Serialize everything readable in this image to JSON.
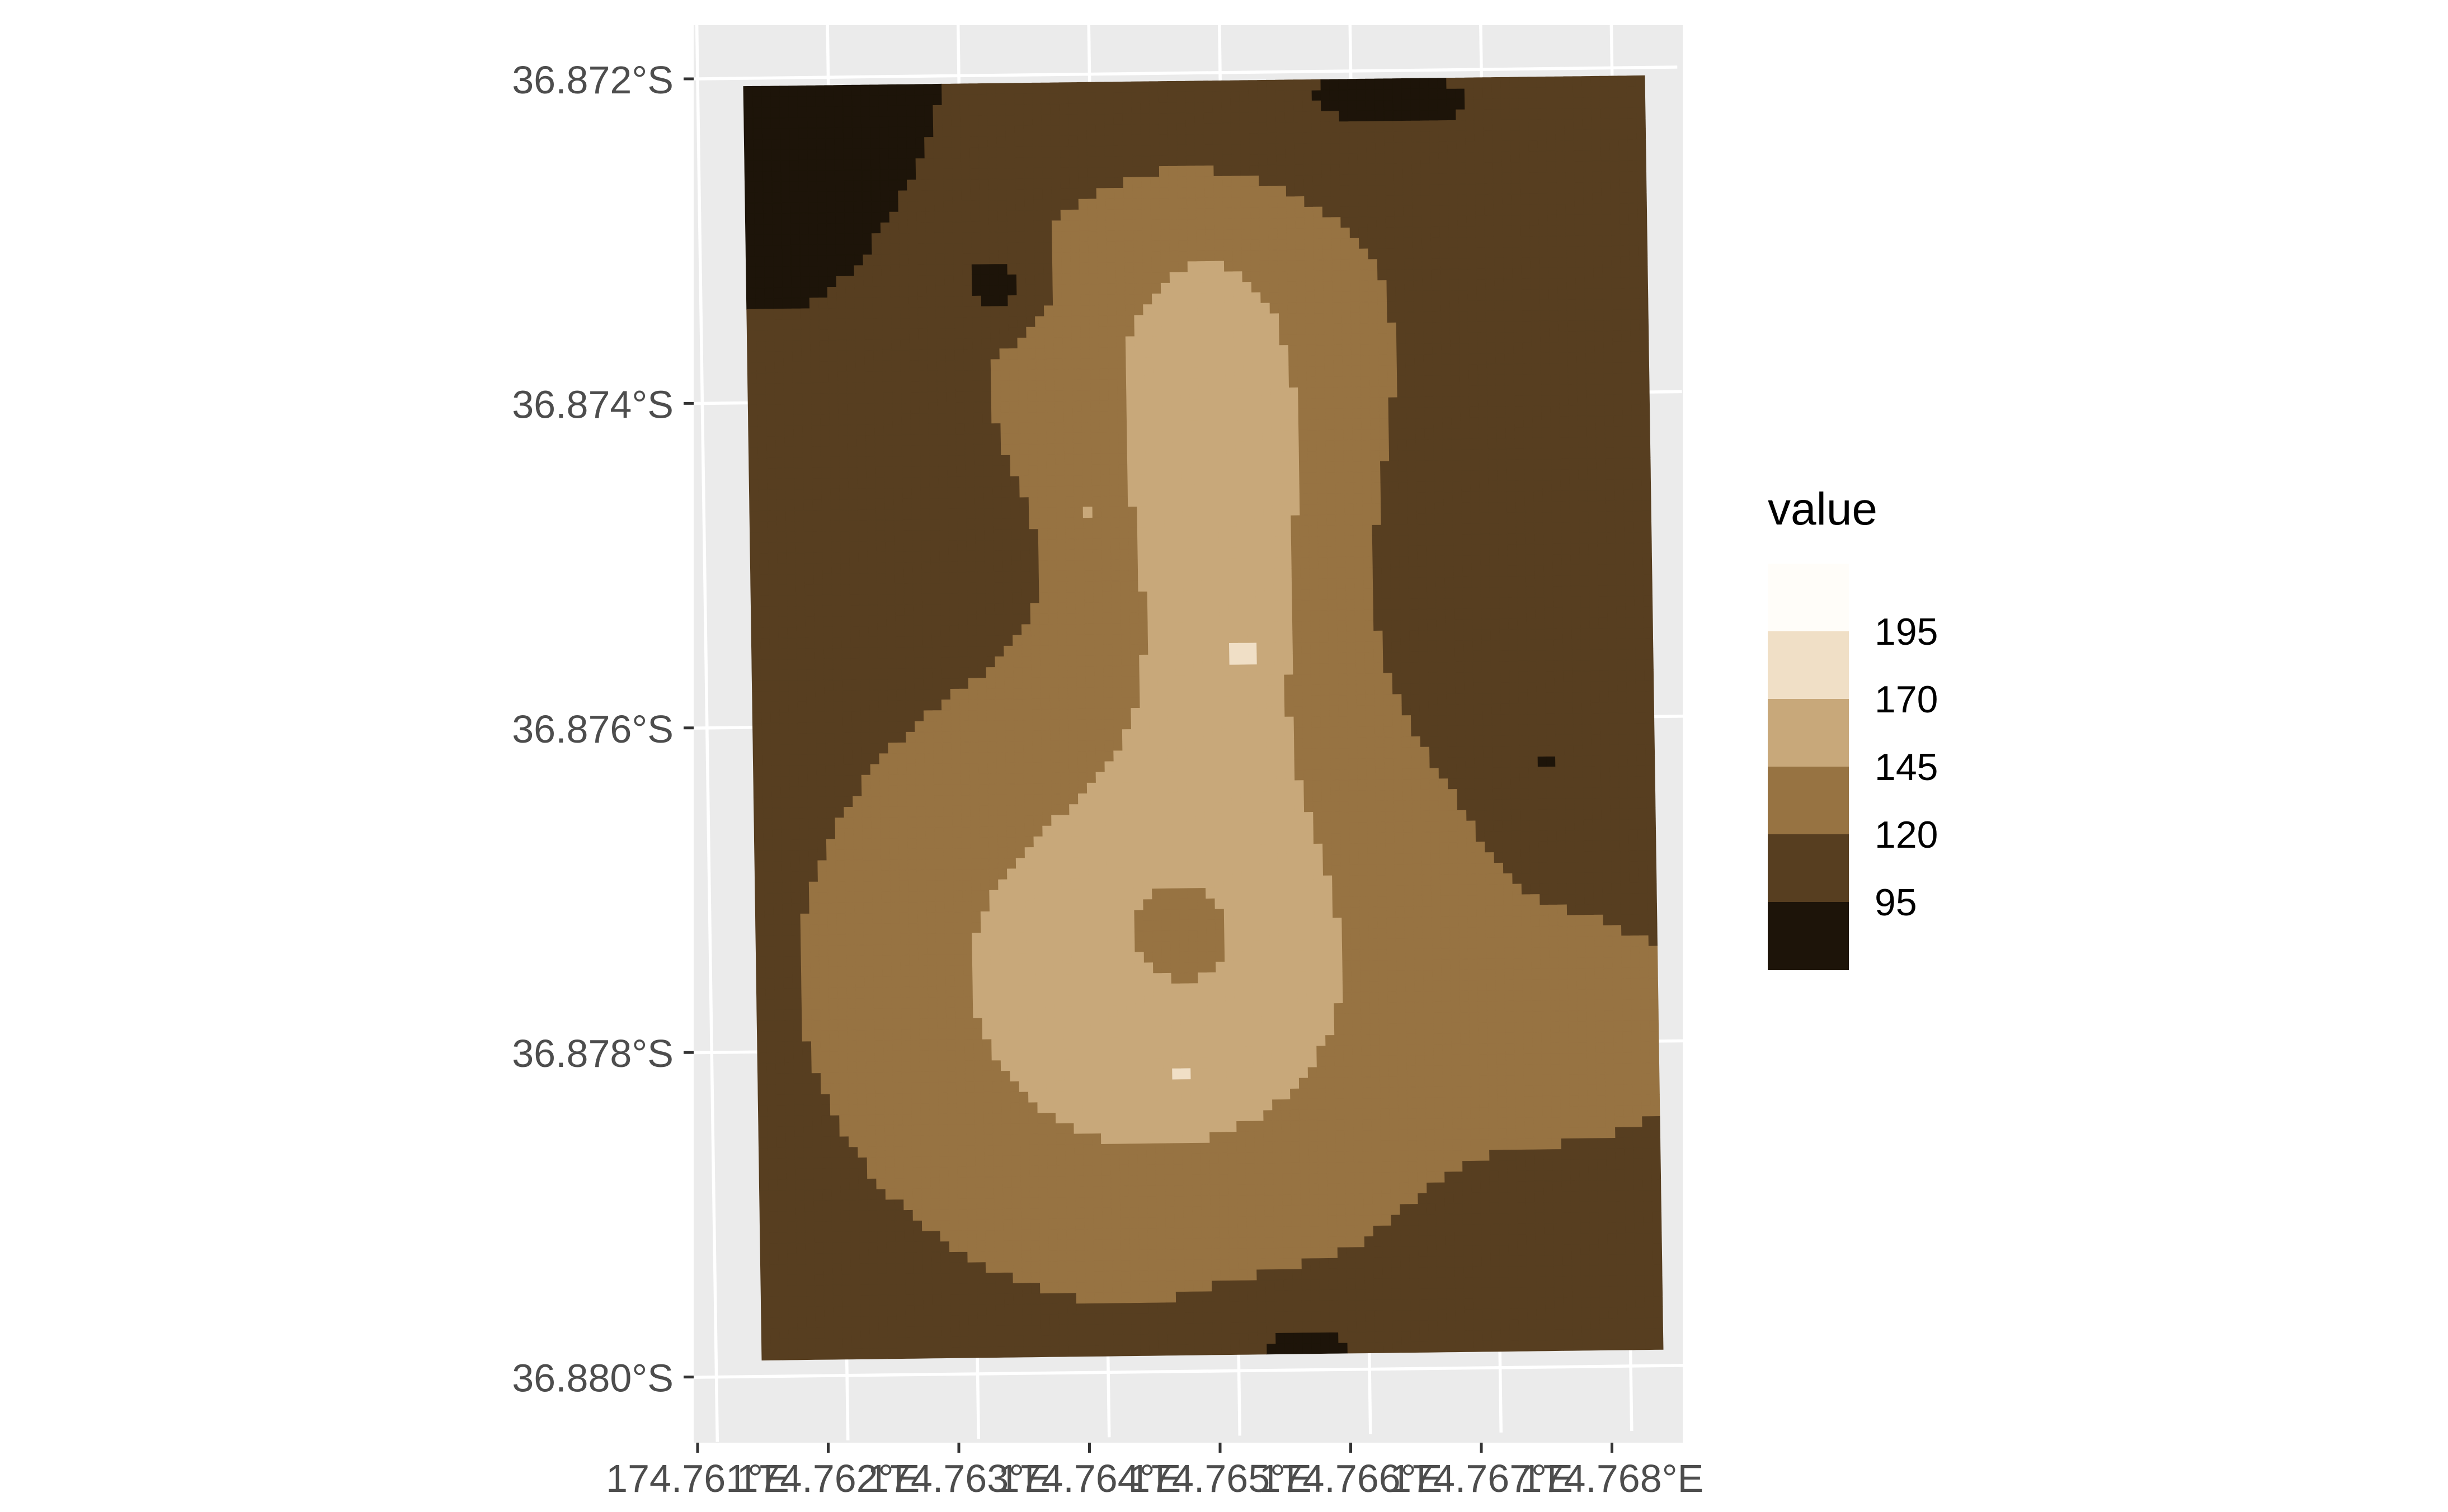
{
  "chart_data": {
    "type": "heatmap",
    "title": "",
    "xlabel": "",
    "ylabel": "",
    "grid": true,
    "legend_position": "right",
    "legend": {
      "title": "value",
      "breaks": [
        "195",
        "170",
        "145",
        "120",
        "95"
      ],
      "colors": [
        "#fffdf9",
        "#f0dfc6",
        "#c8a87a",
        "#977342",
        "#573e20",
        "#1d1409"
      ]
    },
    "x_axis": {
      "range": [
        174.7607,
        174.7685
      ],
      "ticks": [
        {
          "value": 174.761,
          "label": "174.761°E"
        },
        {
          "value": 174.762,
          "label": "174.762°E"
        },
        {
          "value": 174.763,
          "label": "174.763°E"
        },
        {
          "value": 174.764,
          "label": "174.764°E"
        },
        {
          "value": 174.765,
          "label": "174.765°E"
        },
        {
          "value": 174.766,
          "label": "174.766°E"
        },
        {
          "value": 174.767,
          "label": "174.767°E"
        },
        {
          "value": 174.768,
          "label": "174.768°E"
        }
      ]
    },
    "y_axis": {
      "range": [
        -36.8804,
        -36.8716
      ],
      "ticks": [
        {
          "value": -36.872,
          "label": "36.872°S"
        },
        {
          "value": -36.874,
          "label": "36.874°S"
        },
        {
          "value": -36.876,
          "label": "36.876°S"
        },
        {
          "value": -36.878,
          "label": "36.878°S"
        },
        {
          "value": -36.88,
          "label": "36.880°S"
        }
      ]
    },
    "raster_extent": {
      "lon": [
        174.76135,
        174.76825
      ],
      "lat": [
        -36.8799,
        -36.87205
      ]
    },
    "value_range": [
      95,
      196
    ]
  }
}
